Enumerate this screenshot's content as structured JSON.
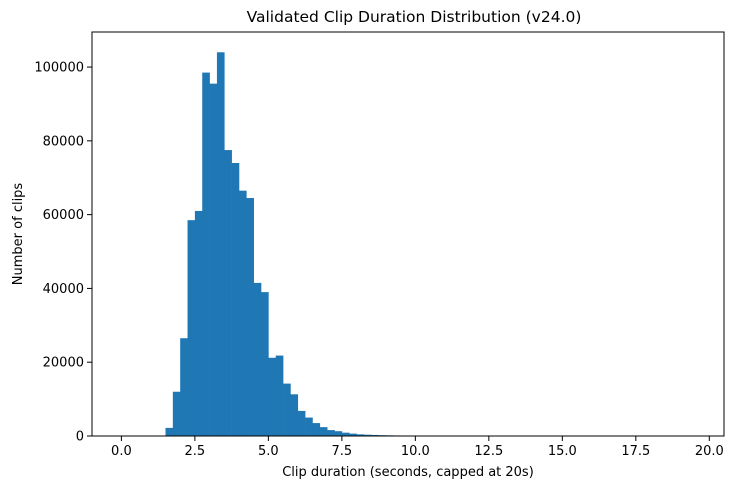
{
  "chart_data": {
    "type": "bar",
    "title": "Validated Clip Duration Distribution (v24.0)",
    "xlabel": "Clip duration (seconds, capped at 20s)",
    "ylabel": "Number of clips",
    "xlim": [
      -1,
      20.5
    ],
    "ylim": [
      0,
      109500
    ],
    "bar_color": "#1f77b4",
    "bin_width": 0.25,
    "x_ticks": [
      0,
      2.5,
      5,
      7.5,
      10,
      12.5,
      15,
      17.5,
      20
    ],
    "x_tick_labels": [
      "0.0",
      "2.5",
      "5.0",
      "7.5",
      "10.0",
      "12.5",
      "15.0",
      "17.5",
      "20.0"
    ],
    "y_ticks": [
      0,
      20000,
      40000,
      60000,
      80000,
      100000
    ],
    "y_tick_labels": [
      "0",
      "20000",
      "40000",
      "60000",
      "80000",
      "100000"
    ],
    "bin_starts": [
      1.5,
      1.75,
      2.0,
      2.25,
      2.5,
      2.75,
      3.0,
      3.25,
      3.5,
      3.75,
      4.0,
      4.25,
      4.5,
      4.75,
      5.0,
      5.25,
      5.5,
      5.75,
      6.0,
      6.25,
      6.5,
      6.75,
      7.0,
      7.25,
      7.5,
      7.75,
      8.0,
      8.25,
      8.5,
      8.75,
      9.0,
      9.25,
      9.5,
      9.75,
      10.0,
      10.25,
      10.5,
      10.75,
      11.0,
      11.25,
      11.5,
      11.75
    ],
    "values": [
      2200,
      12000,
      26500,
      58500,
      61000,
      98500,
      95500,
      104000,
      77500,
      74000,
      66500,
      64500,
      41500,
      39000,
      21200,
      21800,
      14200,
      11300,
      6800,
      5000,
      3500,
      2400,
      1600,
      1300,
      900,
      650,
      450,
      350,
      280,
      220,
      180,
      150,
      120,
      100,
      80,
      60,
      50,
      40,
      30,
      25,
      20,
      15
    ],
    "legend": "none",
    "grid": false
  }
}
